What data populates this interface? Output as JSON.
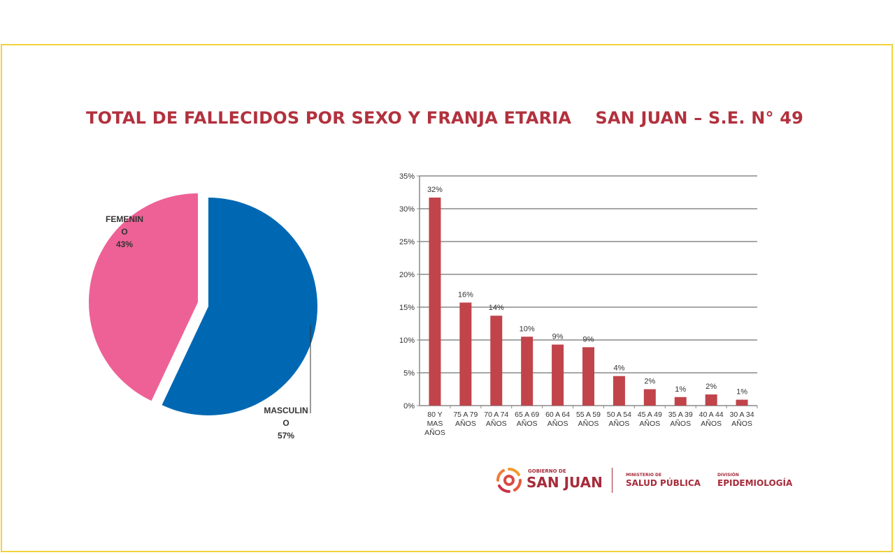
{
  "title": "TOTAL DE FALLECIDOS POR SEXO Y FRANJA ETARIA    SAN JUAN – S.E. N° 49",
  "chart_data": [
    {
      "type": "pie",
      "slices": [
        {
          "label": "MASCULINO",
          "label_lines": [
            "MASCULIN",
            "O",
            "57%"
          ],
          "value": 57,
          "color": "#0068b3"
        },
        {
          "label": "FEMENINO",
          "label_lines": [
            "FEMENIN",
            "O",
            "43%"
          ],
          "value": 43,
          "color": "#ee6196"
        }
      ]
    },
    {
      "type": "bar",
      "categories": [
        [
          "80 Y",
          "MAS",
          "AÑOS"
        ],
        [
          "75 A 79",
          "AÑOS"
        ],
        [
          "70 A 74",
          "AÑOS"
        ],
        [
          "65 A 69",
          "AÑOS"
        ],
        [
          "60 A 64",
          "AÑOS"
        ],
        [
          "55 A 59",
          "AÑOS"
        ],
        [
          "50 A 54",
          "AÑOS"
        ],
        [
          "45 A 49",
          "AÑOS"
        ],
        [
          "35 A 39",
          "AÑOS"
        ],
        [
          "40 A 44",
          "AÑOS"
        ],
        [
          "30 A 34",
          "AÑOS"
        ]
      ],
      "values": [
        31.7,
        15.7,
        13.7,
        10.5,
        9.3,
        8.9,
        4.5,
        2.5,
        1.3,
        1.7,
        0.9
      ],
      "data_labels": [
        "32%",
        "16%",
        "14%",
        "10%",
        "9%",
        "9%",
        "4%",
        "2%",
        "1%",
        "2%",
        "1%"
      ],
      "yticks": [
        "0%",
        "5%",
        "10%",
        "15%",
        "20%",
        "25%",
        "30%",
        "35%"
      ],
      "ylim": [
        0,
        35
      ],
      "grid": true,
      "color": "#c0444a"
    }
  ],
  "logos": {
    "gobierno_small": "GOBIERNO DE",
    "gobierno_big": "SAN JUAN",
    "ministerio_small": "MINISTERIO DE",
    "ministerio_big": "SALUD PÚBLICA",
    "division_small": "DIVISIÓN",
    "division_big": "EPIDEMIOLOGÍA"
  }
}
